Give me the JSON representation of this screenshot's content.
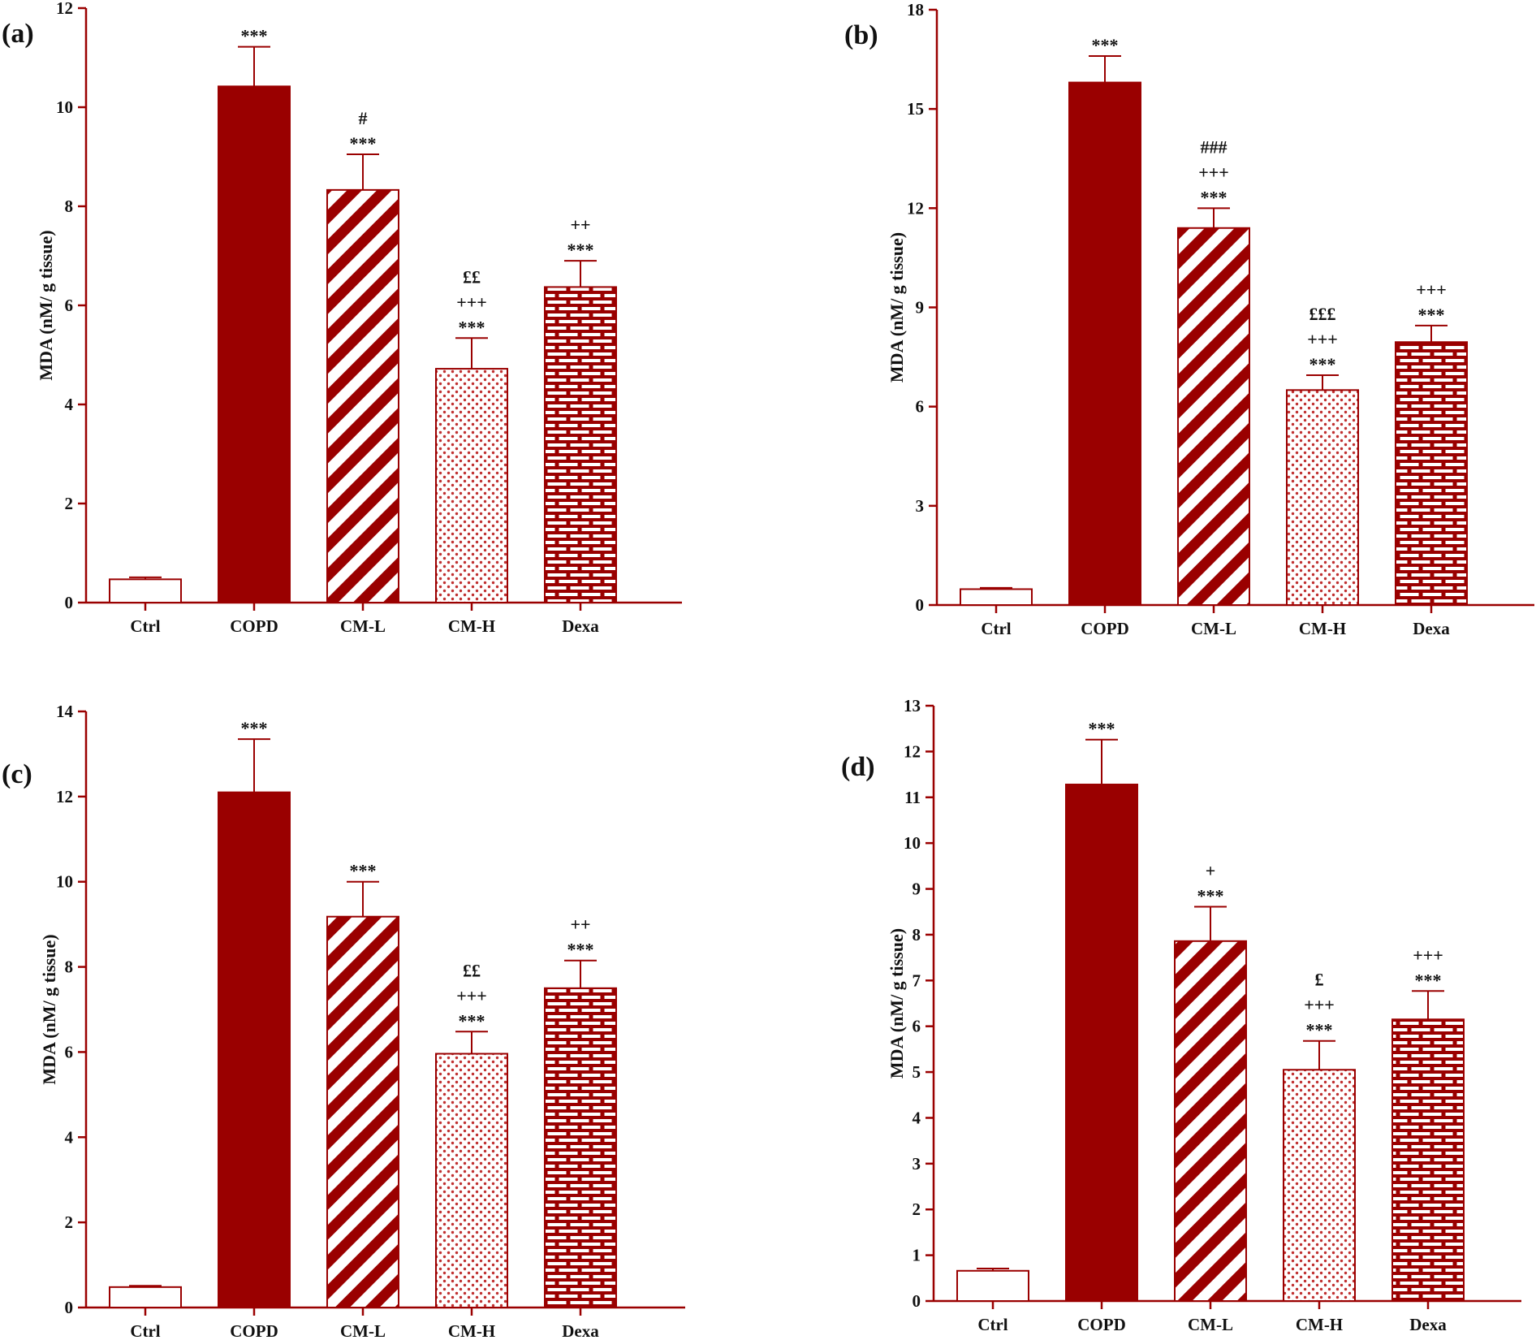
{
  "colors": {
    "dark_red": "#9a0000",
    "axis": "#9a0000",
    "text": "#111111"
  },
  "chart_data": [
    {
      "panel": "(a)",
      "type": "bar",
      "categories": [
        "Ctrl",
        "COPD",
        "CM-L",
        "CM-H",
        "Dexa"
      ],
      "values": [
        0.47,
        10.42,
        8.33,
        4.72,
        6.37
      ],
      "errors": [
        0.04,
        0.8,
        0.72,
        0.62,
        0.53
      ],
      "annotations": [
        [],
        [
          "***"
        ],
        [
          "#",
          "***"
        ],
        [
          "££",
          "+++",
          "***"
        ],
        [
          "++",
          "***"
        ]
      ],
      "ylabel": "MDA (nM/ g tissue)",
      "ylim": [
        0,
        12
      ],
      "yticks": [
        0,
        2,
        4,
        6,
        8,
        10,
        12
      ]
    },
    {
      "panel": "(b)",
      "type": "bar",
      "categories": [
        "Ctrl",
        "COPD",
        "CM-L",
        "CM-H",
        "Dexa"
      ],
      "values": [
        0.48,
        15.8,
        11.4,
        6.5,
        7.95
      ],
      "errors": [
        0.04,
        0.8,
        0.6,
        0.45,
        0.5
      ],
      "annotations": [
        [],
        [
          "***"
        ],
        [
          "###",
          "+++",
          "***"
        ],
        [
          "£££",
          "+++",
          "***"
        ],
        [
          "+++",
          "***"
        ]
      ],
      "ylabel": "MDA (nM/ g tissue)",
      "ylim": [
        0,
        18
      ],
      "yticks": [
        0,
        3,
        6,
        9,
        12,
        15,
        18
      ]
    },
    {
      "panel": "(c)",
      "type": "bar",
      "categories": [
        "Ctrl",
        "COPD",
        "CM-L",
        "CM-H",
        "Dexa"
      ],
      "values": [
        0.48,
        12.1,
        9.18,
        5.96,
        7.5
      ],
      "errors": [
        0.03,
        1.25,
        0.82,
        0.52,
        0.65
      ],
      "annotations": [
        [],
        [
          "***"
        ],
        [
          "***"
        ],
        [
          "££",
          "+++",
          "***"
        ],
        [
          "++",
          "***"
        ]
      ],
      "ylabel": "MDA (nM/ g tissue)",
      "ylim": [
        0,
        14
      ],
      "yticks": [
        0,
        2,
        4,
        6,
        8,
        10,
        12,
        14
      ]
    },
    {
      "panel": "(d)",
      "type": "bar",
      "categories": [
        "Ctrl",
        "COPD",
        "CM-L",
        "CM-H",
        "Dexa"
      ],
      "values": [
        0.66,
        11.28,
        7.86,
        5.05,
        6.15
      ],
      "errors": [
        0.05,
        0.98,
        0.75,
        0.63,
        0.62
      ],
      "annotations": [
        [],
        [
          "***"
        ],
        [
          "+",
          "***"
        ],
        [
          "£",
          "+++",
          "***"
        ],
        [
          "+++",
          "***"
        ]
      ],
      "ylabel": "MDA (nM/ g tissue)",
      "ylim": [
        0,
        13
      ],
      "yticks": [
        0,
        1,
        2,
        3,
        4,
        5,
        6,
        7,
        8,
        9,
        10,
        11,
        12,
        13
      ]
    }
  ]
}
